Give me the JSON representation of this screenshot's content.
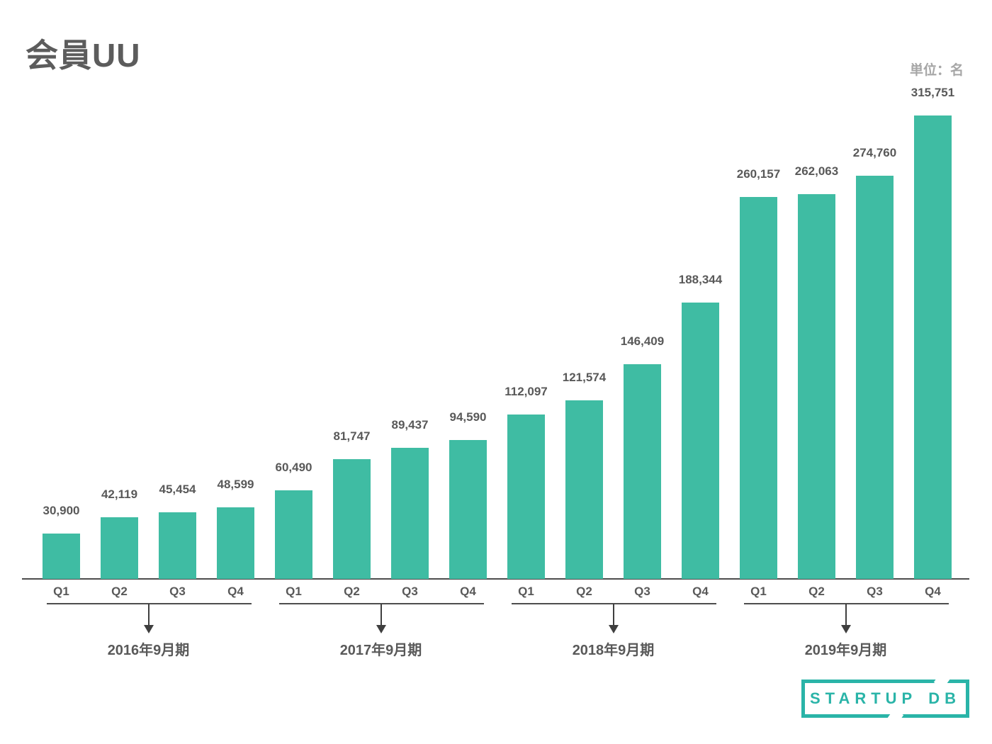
{
  "header": {
    "title": "会員UU",
    "unit_label": "単位：名"
  },
  "chart_data": {
    "type": "bar",
    "title": "会員UU",
    "unit": "単位：名",
    "xlabel": "",
    "ylabel": "",
    "ylim": [
      0,
      330000
    ],
    "grid": false,
    "legend": false,
    "bar_color": "#3fbca3",
    "value_label_color": "#595959",
    "axis_color": "#4d4d4d",
    "categories": [
      "Q1",
      "Q2",
      "Q3",
      "Q4",
      "Q1",
      "Q2",
      "Q3",
      "Q4",
      "Q1",
      "Q2",
      "Q3",
      "Q4",
      "Q1",
      "Q2",
      "Q3",
      "Q4"
    ],
    "values": [
      30900,
      42119,
      45454,
      48599,
      60490,
      81747,
      89437,
      94590,
      112097,
      121574,
      146409,
      188344,
      260157,
      262063,
      274760,
      315751
    ],
    "groups": [
      {
        "label": "2016年9月期",
        "quarters": [
          "Q1",
          "Q2",
          "Q3",
          "Q4"
        ],
        "values": [
          30900,
          42119,
          45454,
          48599
        ],
        "value_labels": [
          "30,900",
          "42,119",
          "45,454",
          "48,599"
        ]
      },
      {
        "label": "2017年9月期",
        "quarters": [
          "Q1",
          "Q2",
          "Q3",
          "Q4"
        ],
        "values": [
          60490,
          81747,
          89437,
          94590
        ],
        "value_labels": [
          "60,490",
          "81,747",
          "89,437",
          "94,590"
        ]
      },
      {
        "label": "2018年9月期",
        "quarters": [
          "Q1",
          "Q2",
          "Q3",
          "Q4"
        ],
        "values": [
          112097,
          121574,
          146409,
          188344
        ],
        "value_labels": [
          "112,097",
          "121,574",
          "146,409",
          "188,344"
        ]
      },
      {
        "label": "2019年9月期",
        "quarters": [
          "Q1",
          "Q2",
          "Q3",
          "Q4"
        ],
        "values": [
          260157,
          262063,
          274760,
          315751
        ],
        "value_labels": [
          "260,157",
          "262,063",
          "274,760",
          "315,751"
        ]
      }
    ]
  },
  "logo": {
    "word1": "STARTUP",
    "word2": "DB",
    "color": "#2ab4a8"
  }
}
